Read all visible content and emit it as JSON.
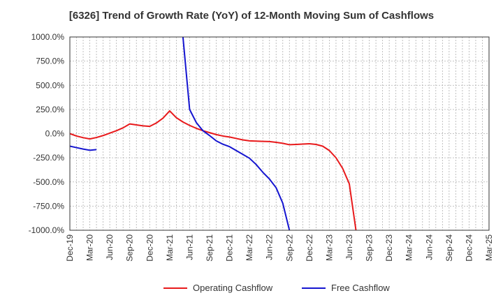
{
  "chart_data": {
    "type": "line",
    "title": "[6326]  Trend of Growth Rate (YoY) of 12-Month Moving Sum of Cashflows",
    "xlabel": "",
    "ylabel": "",
    "ylim": [
      -1000,
      1000
    ],
    "y_ticks": [
      "1000.0%",
      "750.0%",
      "500.0%",
      "250.0%",
      "0.0%",
      "-250.0%",
      "-500.0%",
      "-750.0%",
      "-1000.0%"
    ],
    "x_ticks": [
      "Dec-19",
      "Mar-20",
      "Jun-20",
      "Sep-20",
      "Dec-20",
      "Mar-21",
      "Jun-21",
      "Sep-21",
      "Dec-21",
      "Mar-22",
      "Jun-22",
      "Sep-22",
      "Dec-22",
      "Mar-23",
      "Jun-23",
      "Sep-23",
      "Dec-23",
      "Mar-24",
      "Jun-24",
      "Sep-24",
      "Dec-24",
      "Mar-25"
    ],
    "x_range": [
      "2019-12",
      "2025-03"
    ],
    "grid": true,
    "legend_position": "bottom",
    "series": [
      {
        "name": "Operating Cashflow",
        "color": "#e8191b",
        "points": [
          [
            "2019-12",
            0
          ],
          [
            "2020-01",
            -25
          ],
          [
            "2020-02",
            -42
          ],
          [
            "2020-03",
            -55
          ],
          [
            "2020-04",
            -40
          ],
          [
            "2020-05",
            -20
          ],
          [
            "2020-06",
            5
          ],
          [
            "2020-07",
            30
          ],
          [
            "2020-08",
            60
          ],
          [
            "2020-09",
            100
          ],
          [
            "2020-10",
            90
          ],
          [
            "2020-11",
            80
          ],
          [
            "2020-12",
            75
          ],
          [
            "2021-01",
            110
          ],
          [
            "2021-02",
            160
          ],
          [
            "2021-03",
            235
          ],
          [
            "2021-04",
            165
          ],
          [
            "2021-05",
            120
          ],
          [
            "2021-06",
            85
          ],
          [
            "2021-07",
            55
          ],
          [
            "2021-08",
            30
          ],
          [
            "2021-09",
            10
          ],
          [
            "2021-10",
            -10
          ],
          [
            "2021-11",
            -25
          ],
          [
            "2021-12",
            -35
          ],
          [
            "2022-01",
            -50
          ],
          [
            "2022-02",
            -65
          ],
          [
            "2022-03",
            -75
          ],
          [
            "2022-04",
            -78
          ],
          [
            "2022-05",
            -80
          ],
          [
            "2022-06",
            -82
          ],
          [
            "2022-07",
            -90
          ],
          [
            "2022-08",
            -100
          ],
          [
            "2022-09",
            -115
          ],
          [
            "2022-10",
            -112
          ],
          [
            "2022-11",
            -108
          ],
          [
            "2022-12",
            -105
          ],
          [
            "2023-01",
            -112
          ],
          [
            "2023-02",
            -130
          ],
          [
            "2023-03",
            -175
          ],
          [
            "2023-04",
            -250
          ],
          [
            "2023-05",
            -360
          ],
          [
            "2023-06",
            -520
          ],
          [
            "2023-07",
            -1000
          ]
        ]
      },
      {
        "name": "Free Cashflow",
        "color": "#1515d0",
        "segments": [
          [
            [
              "2019-12",
              -130
            ],
            [
              "2020-01",
              -145
            ],
            [
              "2020-02",
              -160
            ],
            [
              "2020-03",
              -172
            ],
            [
              "2020-04",
              -165
            ]
          ],
          [
            [
              "2021-05",
              1000
            ],
            [
              "2021-06",
              250
            ],
            [
              "2021-07",
              115
            ],
            [
              "2021-08",
              30
            ],
            [
              "2021-09",
              -20
            ],
            [
              "2021-10",
              -75
            ],
            [
              "2021-11",
              -110
            ],
            [
              "2021-12",
              -135
            ],
            [
              "2022-01",
              -175
            ],
            [
              "2022-02",
              -215
            ],
            [
              "2022-03",
              -255
            ],
            [
              "2022-04",
              -320
            ],
            [
              "2022-05",
              -400
            ],
            [
              "2022-06",
              -470
            ],
            [
              "2022-07",
              -560
            ],
            [
              "2022-08",
              -720
            ],
            [
              "2022-09",
              -1000
            ]
          ]
        ]
      }
    ]
  }
}
